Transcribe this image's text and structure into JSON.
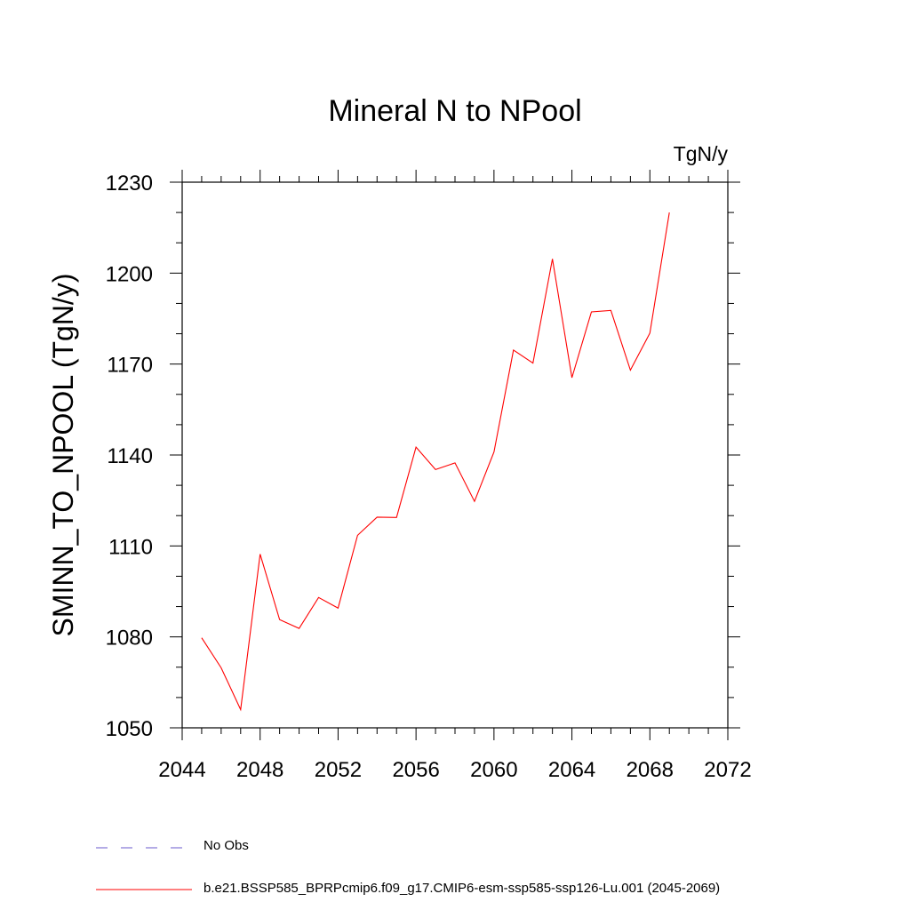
{
  "chart_data": {
    "type": "line",
    "title": "Mineral N to NPool",
    "units": "TgN/y",
    "ylabel": "SMINN_TO_NPOOL  (TgN/y)",
    "xlabel": "",
    "xlim": [
      2044,
      2072
    ],
    "ylim": [
      1050,
      1230
    ],
    "xticks": [
      "2044",
      "2048",
      "2052",
      "2056",
      "2060",
      "2064",
      "2068",
      "2072"
    ],
    "yticks": [
      "1050",
      "1080",
      "1110",
      "1140",
      "1170",
      "1200",
      "1230"
    ],
    "x": [
      2045,
      2046,
      2047,
      2048,
      2049,
      2050,
      2051,
      2052,
      2053,
      2054,
      2055,
      2056,
      2057,
      2058,
      2059,
      2060,
      2061,
      2062,
      2063,
      2064,
      2065,
      2066,
      2067,
      2068,
      2069
    ],
    "series": [
      {
        "name": "b.e21.BSSP585_BPRPcmip6.f09_g17.CMIP6-esm-ssp585-ssp126-Lu.001 (2045-2069)",
        "color": "#ff0000",
        "style": "solid",
        "values": [
          1079.7,
          1069.8,
          1056.0,
          1107.3,
          1085.7,
          1082.8,
          1093.0,
          1089.5,
          1113.5,
          1119.5,
          1119.4,
          1142.6,
          1135.2,
          1137.4,
          1124.7,
          1141.0,
          1174.6,
          1170.3,
          1204.7,
          1165.5,
          1187.2,
          1187.7,
          1168.0,
          1180.2,
          1220.0
        ]
      }
    ],
    "legend": [
      {
        "label": "No Obs",
        "color": "#6a5acd",
        "style": "dashed"
      },
      {
        "label": "b.e21.BSSP585_BPRPcmip6.f09_g17.CMIP6-esm-ssp585-ssp126-Lu.001 (2045-2069)",
        "color": "#ff0000",
        "style": "solid"
      }
    ],
    "legend_placement": "bottom-left",
    "grid": false
  }
}
